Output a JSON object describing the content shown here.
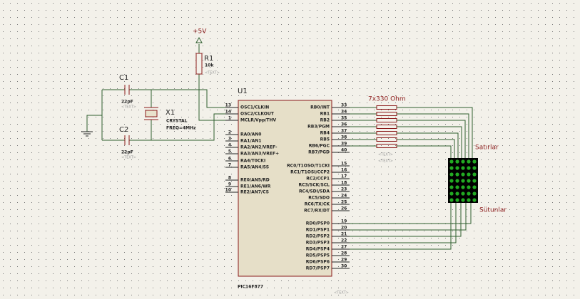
{
  "power": {
    "label": "+5V"
  },
  "r1": {
    "ref": "R1",
    "value": "10k",
    "text": "<TEXT>"
  },
  "c1": {
    "ref": "C1",
    "value": "22pF",
    "text": "<TEXT>"
  },
  "c2": {
    "ref": "C2",
    "value": "22pF",
    "text": "<TEXT>"
  },
  "x1": {
    "ref": "X1",
    "type": "CRYSTAL",
    "freq": "FREQ=4MHz"
  },
  "u1": {
    "ref": "U1",
    "part": "PIC16F877",
    "text": "<TEXT>",
    "left_pins": [
      {
        "number": "13",
        "name": "OSC1/CLKIN"
      },
      {
        "number": "14",
        "name": "OSC2/CLKOUT"
      },
      {
        "number": "1",
        "name": "MCLR/Vpp/THV"
      },
      {
        "number": "2",
        "name": "RA0/AN0"
      },
      {
        "number": "3",
        "name": "RA1/AN1"
      },
      {
        "number": "4",
        "name": "RA2/AN2/VREF-"
      },
      {
        "number": "5",
        "name": "RA3/AN3/VREF+"
      },
      {
        "number": "6",
        "name": "RA4/T0CKI"
      },
      {
        "number": "7",
        "name": "RA5/AN4/SS"
      },
      {
        "number": "8",
        "name": "RE0/AN5/RD"
      },
      {
        "number": "9",
        "name": "RE1/AN6/WR"
      },
      {
        "number": "10",
        "name": "RE2/AN7/CS"
      }
    ],
    "right_pins": [
      {
        "number": "33",
        "name": "RB0/INT"
      },
      {
        "number": "34",
        "name": "RB1"
      },
      {
        "number": "35",
        "name": "RB2"
      },
      {
        "number": "36",
        "name": "RB3/PGM"
      },
      {
        "number": "37",
        "name": "RB4"
      },
      {
        "number": "38",
        "name": "RB5"
      },
      {
        "number": "39",
        "name": "RB6/PGC"
      },
      {
        "number": "40",
        "name": "RB7/PGD"
      },
      {
        "number": "15",
        "name": "RC0/T1OSO/T1CKI"
      },
      {
        "number": "16",
        "name": "RC1/T1OSI/CCP2"
      },
      {
        "number": "17",
        "name": "RC2/CCP1"
      },
      {
        "number": "18",
        "name": "RC3/SCK/SCL"
      },
      {
        "number": "23",
        "name": "RC4/SDI/SDA"
      },
      {
        "number": "24",
        "name": "RC5/SDO"
      },
      {
        "number": "25",
        "name": "RC6/TX/CK"
      },
      {
        "number": "26",
        "name": "RC7/RX/DT"
      },
      {
        "number": "19",
        "name": "RD0/PSP0"
      },
      {
        "number": "20",
        "name": "RD1/PSP1"
      },
      {
        "number": "21",
        "name": "RD2/PSP2"
      },
      {
        "number": "22",
        "name": "RD3/PSP3"
      },
      {
        "number": "27",
        "name": "RD4/PSP4"
      },
      {
        "number": "28",
        "name": "RD5/PSP5"
      },
      {
        "number": "29",
        "name": "RD6/PSP6"
      },
      {
        "number": "30",
        "name": "RD7/PSP7"
      }
    ]
  },
  "rpack": {
    "label": "7x330 Ohm",
    "texts": [
      "<TEXT>",
      "<TEXT>"
    ]
  },
  "matrix": {
    "rows_label": "Satırlar",
    "cols_label": "Sütunlar"
  }
}
